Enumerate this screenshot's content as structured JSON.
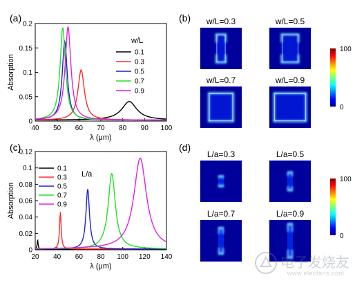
{
  "panels": {
    "a": "(a)",
    "b": "(b)",
    "c": "(c)",
    "d": "(d)"
  },
  "chart_data": [
    {
      "type": "line",
      "panel": "(a)",
      "xlabel": "λ (μm)",
      "ylabel": "Absorption",
      "xlim": [
        40,
        100
      ],
      "ylim": [
        0,
        0.2
      ],
      "xticks": [
        40,
        50,
        60,
        70,
        80,
        90,
        100
      ],
      "yticks": [
        0,
        0.05,
        0.1,
        0.15,
        0.2
      ],
      "legend_title": "w/L",
      "legend_position": "right",
      "series": [
        {
          "name": "0.1",
          "color": "#000000",
          "peak_x": 83,
          "peak_y": 0.04,
          "hwhm": 4.2,
          "base": 0.002
        },
        {
          "name": "0.3",
          "color": "#ff2a2a",
          "peak_x": 61,
          "peak_y": 0.105,
          "hwhm": 1.8,
          "base": 0.002
        },
        {
          "name": "0.5",
          "color": "#1f1fd6",
          "peak_x": 53.5,
          "peak_y": 0.163,
          "hwhm": 1.4,
          "base": 0.002
        },
        {
          "name": "0.7",
          "color": "#22e022",
          "peak_x": 52.6,
          "peak_y": 0.191,
          "hwhm": 1.5,
          "base": 0.002
        },
        {
          "name": "0.9",
          "color": "#e020e0",
          "peak_x": 55.0,
          "peak_y": 0.193,
          "hwhm": 1.6,
          "base": 0.002
        }
      ]
    },
    {
      "type": "line",
      "panel": "(c)",
      "xlabel": "λ (μm)",
      "ylabel": "Absorption",
      "xlim": [
        20,
        140
      ],
      "ylim": [
        0,
        0.12
      ],
      "xticks": [
        20,
        40,
        60,
        80,
        100,
        120,
        140
      ],
      "yticks": [
        0,
        0.02,
        0.04,
        0.06,
        0.08,
        0.1,
        0.12
      ],
      "legend_title": "L/a",
      "legend_position": "top-left",
      "series": [
        {
          "name": "0.1",
          "color": "#000000",
          "peak_x": 22.2,
          "peak_y": 0.012,
          "hwhm": 0.5,
          "base": 0.001
        },
        {
          "name": "0.3",
          "color": "#ff2a2a",
          "peak_x": 43,
          "peak_y": 0.046,
          "hwhm": 0.9,
          "base": 0.001
        },
        {
          "name": "0.5",
          "color": "#1f1fd6",
          "peak_x": 68,
          "peak_y": 0.074,
          "hwhm": 2.0,
          "base": 0.001
        },
        {
          "name": "0.7",
          "color": "#22e022",
          "peak_x": 90,
          "peak_y": 0.093,
          "hwhm": 4.0,
          "base": 0.001
        },
        {
          "name": "0.9",
          "color": "#e020e0",
          "peak_x": 116,
          "peak_y": 0.112,
          "hwhm": 7.0,
          "base": 0.001
        }
      ]
    }
  ],
  "field_maps_b": {
    "colorbar": {
      "max": "100",
      "min": "0"
    },
    "maps": [
      {
        "title": "w/L=0.3",
        "shape": "bar",
        "w": 0.3
      },
      {
        "title": "w/L=0.5",
        "shape": "bar",
        "w": 0.5
      },
      {
        "title": "w/L=0.7",
        "shape": "square",
        "w": 0.7
      },
      {
        "title": "w/L=0.9",
        "shape": "square",
        "w": 0.9
      }
    ]
  },
  "field_maps_d": {
    "colorbar": {
      "max": "100",
      "min": "0"
    },
    "maps": [
      {
        "title": "L/a=0.3",
        "shape": "vbar",
        "l": 0.3
      },
      {
        "title": "L/a=0.5",
        "shape": "vbar",
        "l": 0.5
      },
      {
        "title": "L/a=0.7",
        "shape": "vbar",
        "l": 0.7
      },
      {
        "title": "L/a=0.9",
        "shape": "vbar",
        "l": 0.9
      }
    ]
  },
  "watermark": {
    "big": "电子发烧友",
    "small": "www.elecfans.com"
  }
}
